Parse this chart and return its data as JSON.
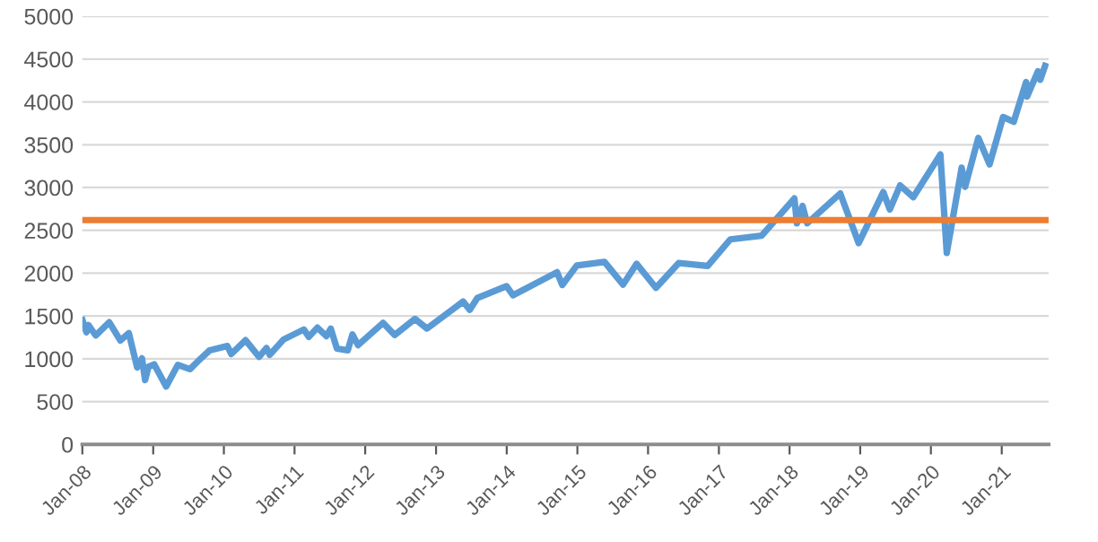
{
  "chart_data": {
    "type": "line",
    "x": [
      "2008-01-02",
      "2008-01-22",
      "2008-02-01",
      "2008-03-10",
      "2008-05-19",
      "2008-07-15",
      "2008-08-28",
      "2008-10-10",
      "2008-11-04",
      "2008-11-20",
      "2008-12-08",
      "2009-01-06",
      "2009-03-09",
      "2009-05-08",
      "2009-07-10",
      "2009-09-01",
      "2009-10-19",
      "2010-01-19",
      "2010-02-08",
      "2010-04-23",
      "2010-07-02",
      "2010-08-09",
      "2010-08-26",
      "2010-11-05",
      "2011-02-18",
      "2011-03-16",
      "2011-04-29",
      "2011-06-15",
      "2011-07-07",
      "2011-08-08",
      "2011-10-03",
      "2011-10-27",
      "2011-11-25",
      "2012-04-02",
      "2012-06-01",
      "2012-09-14",
      "2012-11-15",
      "2013-05-21",
      "2013-06-24",
      "2013-08-02",
      "2013-12-31",
      "2014-02-03",
      "2014-09-18",
      "2014-10-15",
      "2014-12-29",
      "2015-05-21",
      "2015-08-25",
      "2015-11-03",
      "2016-02-11",
      "2016-06-08",
      "2016-11-04",
      "2017-03-01",
      "2017-08-10",
      "2018-01-26",
      "2018-02-08",
      "2018-03-09",
      "2018-04-02",
      "2018-09-20",
      "2018-12-24",
      "2019-04-30",
      "2019-06-03",
      "2019-07-26",
      "2019-10-02",
      "2020-02-19",
      "2020-03-23",
      "2020-06-08",
      "2020-06-26",
      "2020-09-02",
      "2020-10-30",
      "2021-01-08",
      "2021-03-04",
      "2021-05-07",
      "2021-05-12",
      "2021-07-07",
      "2021-07-19",
      "2021-08-13"
    ],
    "series": [
      {
        "color": "#5b9bd5",
        "values": [
          1450,
          1310,
          1395,
          1273,
          1426,
          1214,
          1300,
          899,
          1005,
          752,
          909,
          935,
          677,
          929,
          879,
          998,
          1098,
          1150,
          1056,
          1217,
          1022,
          1127,
          1047,
          1225,
          1343,
          1256,
          1364,
          1265,
          1353,
          1119,
          1099,
          1285,
          1159,
          1419,
          1278,
          1466,
          1353,
          1669,
          1573,
          1709,
          1848,
          1742,
          2011,
          1862,
          2090,
          2131,
          1867,
          2109,
          1829,
          2119,
          2085,
          2395,
          2438,
          2873,
          2581,
          2786,
          2582,
          2930,
          2351,
          2946,
          2744,
          3025,
          2887,
          3386,
          2237,
          3232,
          3009,
          3580,
          3270,
          3824,
          3768,
          4232,
          4063,
          4358,
          4258,
          4420
        ]
      }
    ],
    "xlim": [
      "2008-01-01",
      "2021-08-31"
    ],
    "xticks": [
      {
        "value": "2008-01-01",
        "label": "Jan-08"
      },
      {
        "value": "2009-01-01",
        "label": "Jan-09"
      },
      {
        "value": "2010-01-01",
        "label": "Jan-10"
      },
      {
        "value": "2011-01-01",
        "label": "Jan-11"
      },
      {
        "value": "2012-01-01",
        "label": "Jan-12"
      },
      {
        "value": "2013-01-01",
        "label": "Jan-13"
      },
      {
        "value": "2014-01-01",
        "label": "Jan-14"
      },
      {
        "value": "2015-01-01",
        "label": "Jan-15"
      },
      {
        "value": "2016-01-01",
        "label": "Jan-16"
      },
      {
        "value": "2017-01-01",
        "label": "Jan-17"
      },
      {
        "value": "2018-01-01",
        "label": "Jan-18"
      },
      {
        "value": "2019-01-01",
        "label": "Jan-19"
      },
      {
        "value": "2020-01-01",
        "label": "Jan-20"
      },
      {
        "value": "2021-01-01",
        "label": "Jan-21"
      }
    ],
    "ylim": [
      0,
      5000
    ],
    "yticks": [
      0,
      500,
      1000,
      1500,
      2000,
      2500,
      3000,
      3500,
      4000,
      4500,
      5000
    ],
    "ref_lines": [
      {
        "axis": "y",
        "value": 2620,
        "color": "#ed7d31"
      }
    ],
    "grid": "y",
    "legend": false,
    "line_style": "solid",
    "marker": "none"
  }
}
